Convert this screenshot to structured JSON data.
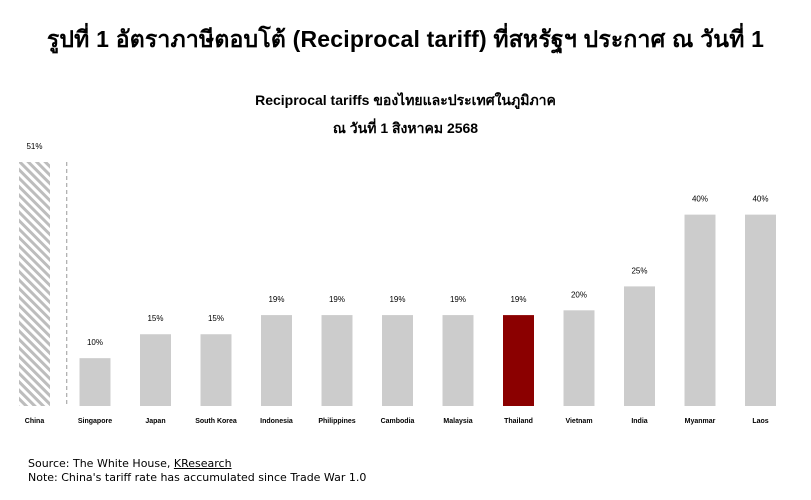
{
  "figure_title": "รูปที่ 1 อัตราภาษีตอบโต้ (Reciprocal tariff) ที่สหรัฐฯ ประกาศ ณ วันที่ 1",
  "colors": {
    "bar": "#cccccc",
    "highlight": "#8b0000",
    "hatch_stripe": "#bdbdbd",
    "divider": "#999999"
  },
  "chart_data": {
    "type": "bar",
    "title": "Reciprocal tariffs ของไทยและประเทศในภูมิภาค",
    "subtitle": "ณ วันที่ 1 สิงหาคม 2568",
    "categories": [
      "China",
      "Singapore",
      "Japan",
      "South Korea",
      "Indonesia",
      "Philippines",
      "Cambodia",
      "Malaysia",
      "Thailand",
      "Vietnam",
      "India",
      "Myanmar",
      "Laos"
    ],
    "values": [
      51,
      10,
      15,
      15,
      19,
      19,
      19,
      19,
      19,
      20,
      25,
      40,
      40
    ],
    "data_labels": [
      "51%",
      "10%",
      "15%",
      "15%",
      "19%",
      "19%",
      "19%",
      "19%",
      "19%",
      "20%",
      "25%",
      "40%",
      "40%"
    ],
    "unit": "%",
    "highlight_category": "Thailand",
    "hatched_category": "China",
    "separator_after": "China",
    "ylim": [
      0,
      51
    ],
    "grid": false,
    "legend": "none"
  },
  "footer": {
    "source_prefix": "Source: The White House, ",
    "source_link": "KResearch",
    "note": "Note: China's tariff rate has accumulated since Trade War 1.0"
  }
}
